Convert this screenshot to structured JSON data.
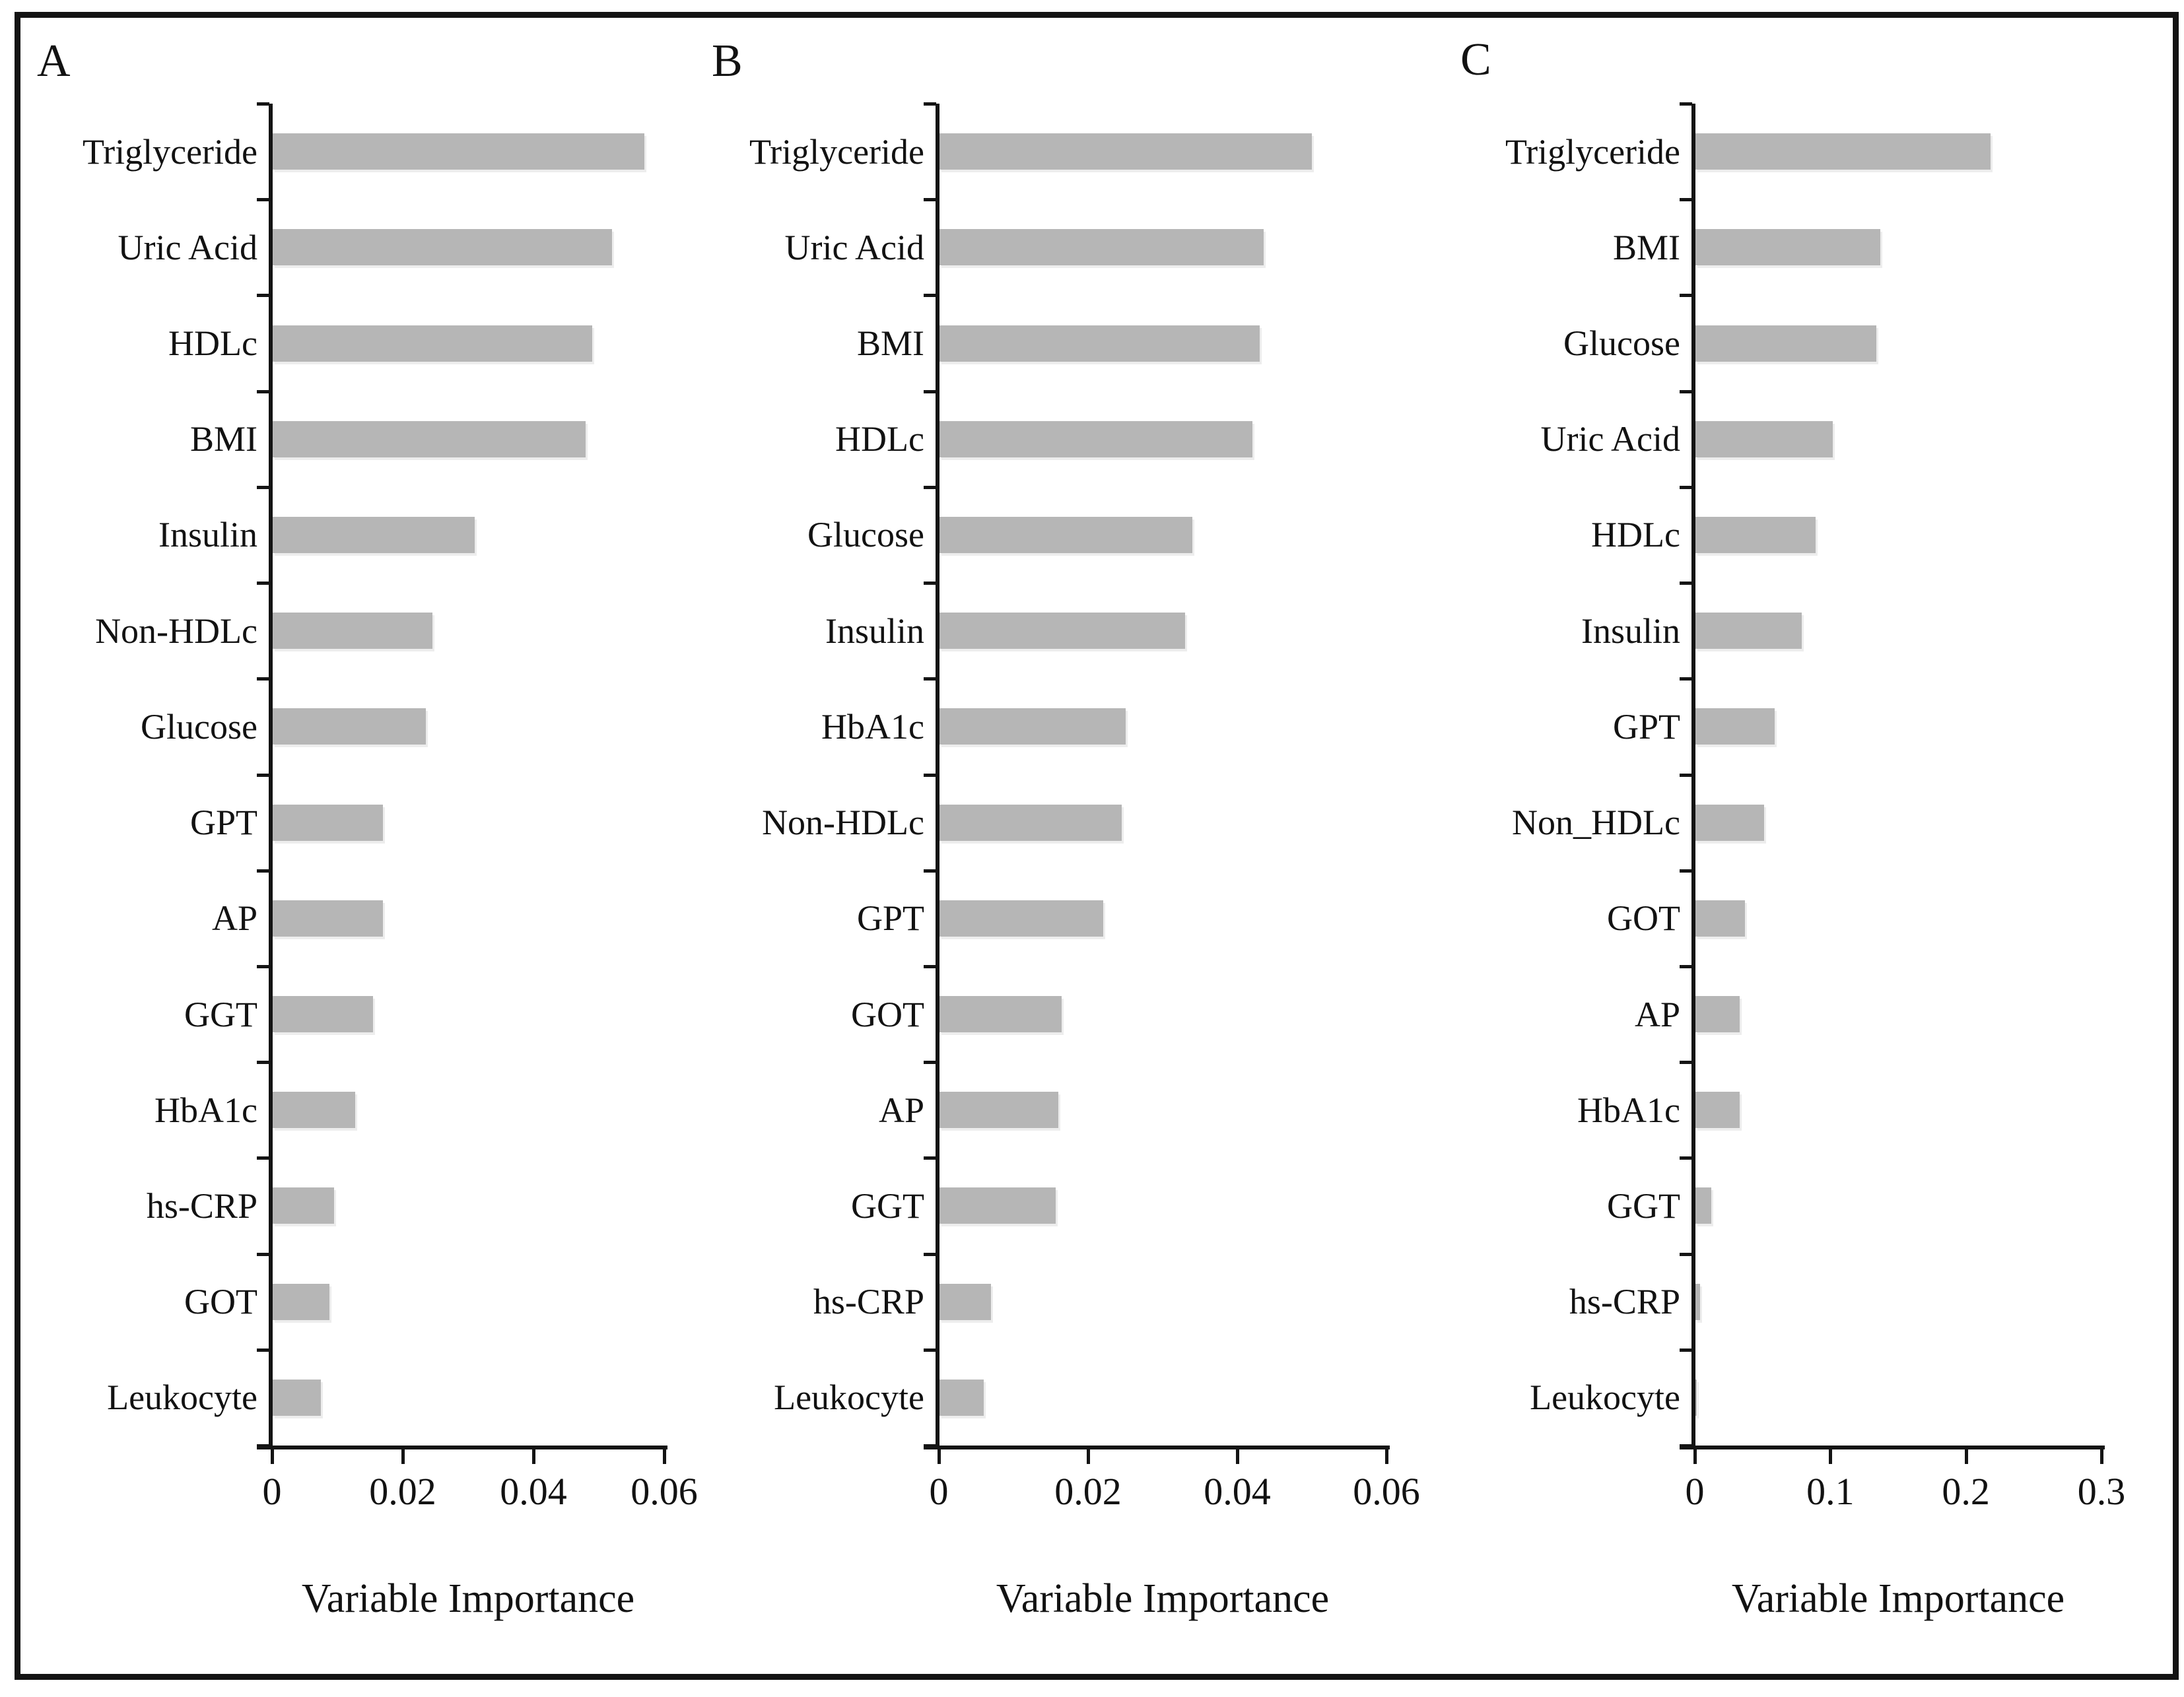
{
  "figure": {
    "bar_color": "#b6b6b6",
    "axis_color": "#141414",
    "background": "#ffffff"
  },
  "chart_data": [
    {
      "type": "bar",
      "panel_label": "A",
      "orientation": "horizontal",
      "title": "",
      "xlabel": "Variable Importance",
      "ylabel": "",
      "grid": false,
      "legend": null,
      "xlim": [
        0,
        0.06
      ],
      "xticks": [
        0,
        0.02,
        0.04,
        0.06
      ],
      "xtick_labels": [
        "0",
        "0.02",
        "0.04",
        "0.06"
      ],
      "categories": [
        "Triglyceride",
        "Uric Acid",
        "HDLc",
        "BMI",
        "Insulin",
        "Non-HDLc",
        "Glucose",
        "GPT",
        "AP",
        "GGT",
        "HbA1c",
        "hs-CRP",
        "GOT",
        "Leukocyte"
      ],
      "values": [
        0.057,
        0.052,
        0.049,
        0.048,
        0.031,
        0.0245,
        0.0235,
        0.017,
        0.017,
        0.0155,
        0.0127,
        0.0095,
        0.0088,
        0.0075
      ]
    },
    {
      "type": "bar",
      "panel_label": "B",
      "orientation": "horizontal",
      "title": "",
      "xlabel": "Variable Importance",
      "ylabel": "",
      "grid": false,
      "legend": null,
      "xlim": [
        0,
        0.06
      ],
      "xticks": [
        0,
        0.02,
        0.04,
        0.06
      ],
      "xtick_labels": [
        "0",
        "0.02",
        "0.04",
        "0.06"
      ],
      "categories": [
        "Triglyceride",
        "Uric Acid",
        "BMI",
        "HDLc",
        "Glucose",
        "Insulin",
        "HbA1c",
        "Non-HDLc",
        "GPT",
        "GOT",
        "AP",
        "GGT",
        "hs-CRP",
        "Leukocyte"
      ],
      "values": [
        0.05,
        0.0435,
        0.043,
        0.042,
        0.034,
        0.033,
        0.025,
        0.0245,
        0.022,
        0.0165,
        0.016,
        0.0157,
        0.007,
        0.006
      ]
    },
    {
      "type": "bar",
      "panel_label": "C",
      "orientation": "horizontal",
      "title": "",
      "xlabel": "Variable Importance",
      "ylabel": "",
      "grid": false,
      "legend": null,
      "xlim": [
        0,
        0.3
      ],
      "xticks": [
        0,
        0.1,
        0.2,
        0.3
      ],
      "xtick_labels": [
        "0",
        "0.1",
        "0.2",
        "0.3"
      ],
      "categories": [
        "Triglyceride",
        "BMI",
        "Glucose",
        "Uric Acid",
        "HDLc",
        "Insulin",
        "GPT",
        "Non_HDLc",
        "GOT",
        "AP",
        "HbA1c",
        "GGT",
        "hs-CRP",
        "Leukocyte"
      ],
      "values": [
        0.218,
        0.137,
        0.134,
        0.102,
        0.089,
        0.079,
        0.059,
        0.051,
        0.037,
        0.033,
        0.033,
        0.012,
        0.004,
        0.001
      ]
    }
  ]
}
